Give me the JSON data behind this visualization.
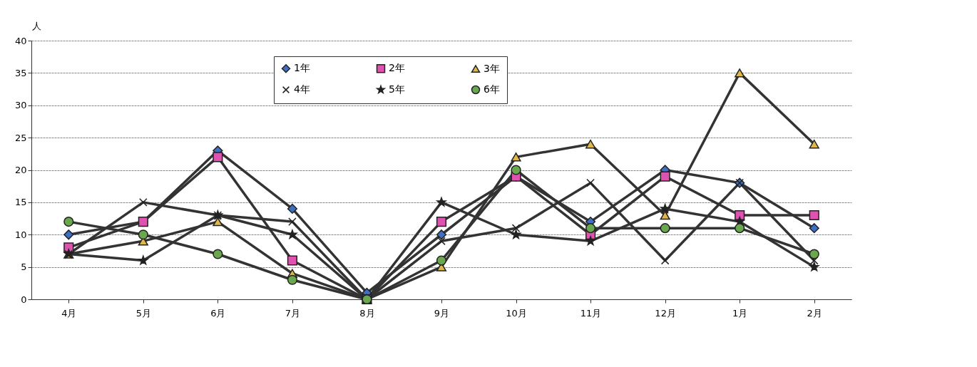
{
  "chart_data": {
    "type": "line",
    "ylabel": "人",
    "categories": [
      "4月",
      "5月",
      "6月",
      "7月",
      "8月",
      "9月",
      "10月",
      "11月",
      "12月",
      "1月",
      "2月"
    ],
    "series": [
      {
        "name": "1年",
        "color": "#3f6fc0",
        "marker": "diamond",
        "values": [
          10,
          12,
          23,
          14,
          1,
          10,
          19,
          12,
          20,
          18,
          11
        ]
      },
      {
        "name": "2年",
        "color": "#e052b0",
        "marker": "square",
        "values": [
          8,
          12,
          22,
          6,
          0,
          12,
          19,
          10,
          19,
          13,
          13
        ]
      },
      {
        "name": "3年",
        "color": "#e0b84a",
        "marker": "triangle",
        "values": [
          7,
          9,
          12,
          4,
          0,
          5,
          22,
          24,
          13,
          35,
          24
        ]
      },
      {
        "name": "4年",
        "color": "#222222",
        "marker": "cross",
        "values": [
          7,
          15,
          13,
          12,
          0,
          9,
          11,
          18,
          6,
          18,
          6
        ]
      },
      {
        "name": "5年",
        "color": "#222222",
        "marker": "star",
        "values": [
          7,
          6,
          13,
          10,
          0,
          15,
          10,
          9,
          14,
          12,
          5
        ]
      },
      {
        "name": "6年",
        "color": "#6aa84f",
        "marker": "circle",
        "values": [
          12,
          10,
          7,
          3,
          0,
          6,
          20,
          11,
          11,
          11,
          7
        ]
      }
    ],
    "ylim": [
      0,
      40
    ],
    "yticks": [
      0,
      5,
      10,
      15,
      20,
      25,
      30,
      35,
      40
    ],
    "grid": "y",
    "legend": "top",
    "line_style": "solid"
  }
}
